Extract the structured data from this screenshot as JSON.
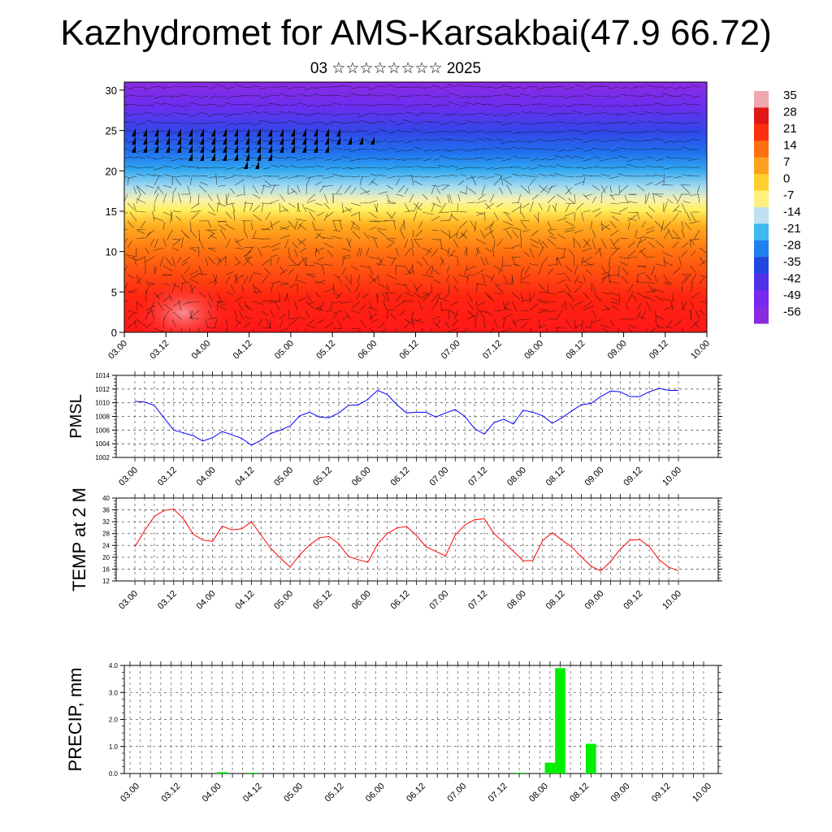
{
  "title": "Kazhydromet for AMS-Karsakbai(47.9 66.72)",
  "subtitle": "03 ☆☆☆☆☆☆☆☆ 2025",
  "colorbar": {
    "labels": [
      "35",
      "28",
      "21",
      "14",
      "7",
      "0",
      "-7",
      "-14",
      "-21",
      "-28",
      "-35",
      "-42",
      "-49",
      "-56"
    ],
    "colors": [
      "#f0a8b0",
      "#e01818",
      "#ff3010",
      "#ff7010",
      "#ffa020",
      "#ffd030",
      "#fff080",
      "#c0e0f0",
      "#40b8f0",
      "#2080f0",
      "#2048e0",
      "#5030e8",
      "#7828f0",
      "#8a2be2"
    ]
  },
  "chart_data": [
    {
      "type": "heatmap",
      "name": "cross-section",
      "y_ticks": [
        "0",
        "5",
        "10",
        "15",
        "20",
        "25",
        "30"
      ],
      "ylim": [
        0,
        31
      ],
      "x_ticks": [
        "03.00",
        "03.12",
        "04.00",
        "04.12",
        "05.00",
        "05.12",
        "06.00",
        "06.12",
        "07.00",
        "07.12",
        "08.00",
        "08.12",
        "09.00",
        "09.12",
        "10.00"
      ],
      "color_scale": [
        -56,
        35
      ]
    },
    {
      "type": "line",
      "ylabel": "PMSL",
      "ylim": [
        1002,
        1014
      ],
      "y_ticks": [
        "1002",
        "1004",
        "1006",
        "1008",
        "1010",
        "1012",
        "1014"
      ],
      "x_ticks": [
        "03.00",
        "03.12",
        "04.00",
        "04.12",
        "05.00",
        "05.12",
        "06.00",
        "06.12",
        "07.00",
        "07.12",
        "08.00",
        "08.12",
        "09.00",
        "09.12",
        "10.00"
      ],
      "color": "#0000ff",
      "values": [
        1010.2,
        1010.1,
        1009.6,
        1007.8,
        1006.0,
        1005.6,
        1005.2,
        1004.4,
        1004.9,
        1005.8,
        1005.3,
        1004.8,
        1003.8,
        1004.5,
        1005.5,
        1006.0,
        1006.6,
        1008.1,
        1008.6,
        1007.9,
        1007.8,
        1008.5,
        1009.6,
        1009.7,
        1010.5,
        1011.8,
        1011.2,
        1009.7,
        1008.5,
        1008.6,
        1008.6,
        1007.9,
        1008.5,
        1009.0,
        1008.0,
        1006.2,
        1005.4,
        1007.1,
        1007.6,
        1006.9,
        1008.9,
        1008.6,
        1008.1,
        1007.0,
        1007.8,
        1008.8,
        1009.7,
        1009.9,
        1010.9,
        1011.7,
        1011.6,
        1010.9,
        1010.9,
        1011.6,
        1012.1,
        1011.8,
        1011.8
      ]
    },
    {
      "type": "line",
      "ylabel": "TEMP at 2 M",
      "ylim": [
        12,
        40
      ],
      "y_ticks": [
        "12",
        "16",
        "20",
        "24",
        "28",
        "32",
        "36",
        "40"
      ],
      "x_ticks": [
        "03.00",
        "03.12",
        "04.00",
        "04.12",
        "05.00",
        "05.12",
        "06.00",
        "06.12",
        "07.00",
        "07.12",
        "08.00",
        "08.12",
        "09.00",
        "09.12",
        "10.00"
      ],
      "color": "#ff0000",
      "values": [
        23.5,
        29.0,
        33.8,
        35.8,
        36.3,
        33.0,
        27.8,
        25.8,
        25.4,
        30.5,
        29.2,
        29.6,
        32.0,
        27.5,
        23.0,
        19.7,
        16.7,
        20.9,
        24.1,
        26.6,
        27.0,
        24.6,
        20.3,
        19.2,
        18.3,
        24.5,
        28.0,
        29.9,
        30.4,
        27.4,
        23.5,
        22.0,
        20.4,
        27.5,
        30.9,
        32.7,
        33.0,
        28.0,
        25.1,
        22.0,
        18.8,
        18.9,
        25.6,
        28.3,
        25.8,
        23.5,
        20.1,
        17.0,
        15.4,
        18.5,
        22.7,
        25.8,
        26.0,
        23.6,
        19.2,
        16.6,
        15.5
      ]
    },
    {
      "type": "bar",
      "ylabel": "PRECIP, mm",
      "ylim": [
        0,
        4.0
      ],
      "y_ticks": [
        "0.0",
        "1.0",
        "2.0",
        "3.0",
        "4.0"
      ],
      "x_ticks": [
        "03.00",
        "03.12",
        "04.00",
        "04.12",
        "05.00",
        "05.12",
        "06.00",
        "06.12",
        "07.00",
        "07.12",
        "08.00",
        "08.12",
        "09.00",
        "09.12",
        "10.00"
      ],
      "color": "#00ee00",
      "values": [
        0,
        0,
        0,
        0,
        0,
        0,
        0,
        0,
        0,
        0.05,
        0,
        0,
        0.03,
        0,
        0,
        0,
        0,
        0,
        0,
        0,
        0,
        0,
        0,
        0,
        0,
        0,
        0,
        0,
        0,
        0,
        0,
        0,
        0,
        0,
        0,
        0,
        0,
        0,
        0.03,
        0,
        0,
        0.4,
        3.9,
        0,
        0,
        1.1,
        0,
        0,
        0,
        0,
        0,
        0,
        0,
        0,
        0,
        0
      ]
    }
  ]
}
